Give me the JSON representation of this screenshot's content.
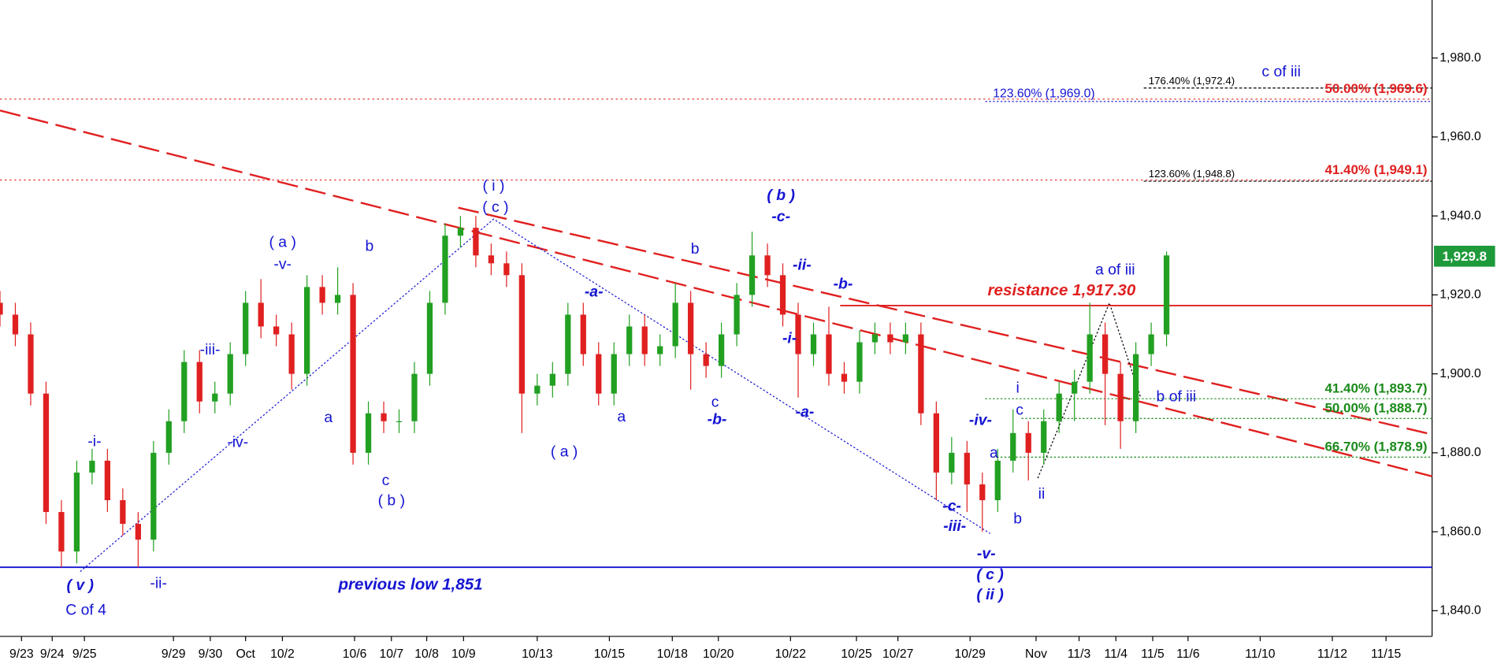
{
  "chart_data": {
    "type": "candlestick",
    "x": [
      0,
      1,
      2,
      3,
      4,
      5,
      6,
      7,
      8,
      9,
      10,
      11,
      12,
      13,
      14,
      15,
      16,
      17,
      18,
      19,
      20,
      21,
      22,
      23,
      24,
      25,
      26,
      27,
      28,
      29,
      30,
      31,
      32,
      33,
      34,
      35,
      36,
      37,
      38,
      39,
      40,
      41,
      42,
      43,
      44,
      45,
      46,
      47,
      48,
      49,
      50,
      51,
      52,
      53,
      54,
      55,
      56,
      57,
      58,
      59,
      60,
      61,
      62,
      63,
      64,
      65,
      66,
      67,
      68,
      69,
      70,
      71,
      72,
      73,
      74,
      75,
      76
    ],
    "open": [
      1918,
      1915,
      1910,
      1895,
      1865,
      1855,
      1875,
      1878,
      1868,
      1862,
      1858,
      1880,
      1888,
      1903,
      1893,
      1895,
      1905,
      1918,
      1912,
      1910,
      1900,
      1922,
      1918,
      1920,
      1880,
      1890,
      1888,
      1888,
      1900,
      1918,
      1935,
      1937,
      1930,
      1928,
      1925,
      1895,
      1897,
      1900,
      1915,
      1905,
      1895,
      1905,
      1912,
      1905,
      1907,
      1918,
      1905,
      1902,
      1910,
      1920,
      1930,
      1925,
      1915,
      1905,
      1910,
      1900,
      1898,
      1908,
      1910,
      1908,
      1910,
      1890,
      1875,
      1880,
      1872,
      1868,
      1878,
      1885,
      1880,
      1888,
      1895,
      1898,
      1910,
      1900,
      1888,
      1905,
      1910
    ],
    "high": [
      1921,
      1918,
      1913,
      1898,
      1868,
      1878,
      1881,
      1881,
      1871,
      1865,
      1883,
      1891,
      1906,
      1906,
      1898,
      1908,
      1921,
      1924,
      1915,
      1913,
      1925,
      1925,
      1927,
      1923,
      1893,
      1893,
      1891,
      1903,
      1921,
      1938,
      1940,
      1940,
      1933,
      1931,
      1928,
      1900,
      1903,
      1918,
      1918,
      1908,
      1908,
      1915,
      1915,
      1910,
      1923,
      1921,
      1908,
      1913,
      1923,
      1936,
      1933,
      1928,
      1918,
      1913,
      1917,
      1903,
      1911,
      1913,
      1913,
      1913,
      1913,
      1893,
      1884,
      1883,
      1875,
      1881,
      1891,
      1888,
      1891,
      1898,
      1901,
      1918,
      1913,
      1903,
      1908,
      1913,
      1931
    ],
    "low": [
      1912,
      1907,
      1892,
      1862,
      1851,
      1852,
      1872,
      1865,
      1859,
      1851,
      1855,
      1877,
      1885,
      1890,
      1890,
      1892,
      1902,
      1909,
      1907,
      1896,
      1897,
      1915,
      1915,
      1877,
      1877,
      1885,
      1885,
      1885,
      1897,
      1915,
      1932,
      1927,
      1925,
      1922,
      1885,
      1892,
      1894,
      1897,
      1902,
      1892,
      1892,
      1902,
      1902,
      1902,
      1904,
      1896,
      1899,
      1899,
      1907,
      1917,
      1922,
      1912,
      1894,
      1902,
      1897,
      1895,
      1895,
      1905,
      1905,
      1905,
      1887,
      1868,
      1872,
      1865,
      1860,
      1865,
      1875,
      1873,
      1877,
      1885,
      1888,
      1895,
      1887,
      1881,
      1885,
      1902,
      1907
    ],
    "close": [
      1915,
      1910,
      1895,
      1865,
      1855,
      1875,
      1878,
      1868,
      1862,
      1858,
      1880,
      1888,
      1903,
      1893,
      1895,
      1905,
      1918,
      1912,
      1910,
      1900,
      1922,
      1918,
      1920,
      1880,
      1890,
      1888,
      1888,
      1900,
      1918,
      1935,
      1937,
      1930,
      1928,
      1925,
      1895,
      1897,
      1900,
      1915,
      1905,
      1895,
      1905,
      1912,
      1905,
      1907,
      1918,
      1905,
      1902,
      1910,
      1920,
      1930,
      1925,
      1915,
      1905,
      1910,
      1900,
      1898,
      1908,
      1910,
      1908,
      1910,
      1890,
      1875,
      1880,
      1872,
      1868,
      1878,
      1885,
      1880,
      1888,
      1895,
      1898,
      1910,
      1900,
      1888,
      1905,
      1910,
      1930
    ],
    "up_color": "#22a022",
    "down_color": "#e02020",
    "xlim": [
      0,
      93.3
    ],
    "ylim": [
      1833.5,
      1994.7
    ],
    "xticks": [
      {
        "value": 1.4,
        "label": "9/23"
      },
      {
        "value": 3.4,
        "label": "9/24"
      },
      {
        "value": 5.5,
        "label": "9/25"
      },
      {
        "value": 11.3,
        "label": "9/29"
      },
      {
        "value": 13.7,
        "label": "9/30"
      },
      {
        "value": 16.0,
        "label": "Oct"
      },
      {
        "value": 18.4,
        "label": "10/2"
      },
      {
        "value": 23.1,
        "label": "10/6"
      },
      {
        "value": 25.5,
        "label": "10/7"
      },
      {
        "value": 27.8,
        "label": "10/8"
      },
      {
        "value": 30.2,
        "label": "10/9"
      },
      {
        "value": 35.0,
        "label": "10/13"
      },
      {
        "value": 39.7,
        "label": "10/15"
      },
      {
        "value": 43.8,
        "label": "10/18"
      },
      {
        "value": 46.8,
        "label": "10/20"
      },
      {
        "value": 51.5,
        "label": "10/22"
      },
      {
        "value": 55.8,
        "label": "10/25"
      },
      {
        "value": 58.5,
        "label": "10/27"
      },
      {
        "value": 63.2,
        "label": "10/29"
      },
      {
        "value": 67.5,
        "label": "Nov"
      },
      {
        "value": 70.3,
        "label": "11/3"
      },
      {
        "value": 72.7,
        "label": "11/4"
      },
      {
        "value": 75.1,
        "label": "11/5"
      },
      {
        "value": 77.4,
        "label": "11/6"
      },
      {
        "value": 82.1,
        "label": "11/10"
      },
      {
        "value": 86.8,
        "label": "11/12"
      },
      {
        "value": 90.3,
        "label": "11/15"
      }
    ],
    "yticks": [
      {
        "value": 1840,
        "label": "1,840.0"
      },
      {
        "value": 1860,
        "label": "1,860.0"
      },
      {
        "value": 1880,
        "label": "1,880.0"
      },
      {
        "value": 1900,
        "label": "1,900.0"
      },
      {
        "value": 1920,
        "label": "1,920.0"
      },
      {
        "value": 1940,
        "label": "1,940.0"
      },
      {
        "value": 1960,
        "label": "1,960.0"
      },
      {
        "value": 1980,
        "label": "1,980.0"
      }
    ],
    "last_price": {
      "value": 1929.8,
      "label": "1,929.8"
    },
    "last_price_color": "#1e9a3a",
    "levels": [
      {
        "label": "176.40% (1,972.4)",
        "value": 1972.4,
        "color": "#000000"
      },
      {
        "label": "50.00% (1,969.6)",
        "value": 1969.6,
        "color": "#e02020"
      },
      {
        "label": "123.60% (1,969.0)",
        "value": 1969.0,
        "color": "#1414d2"
      },
      {
        "label": "123.60% (1,948.8)",
        "value": 1948.8,
        "color": "#000000"
      },
      {
        "label": "41.40% (1,949.1)",
        "value": 1949.1,
        "color": "#e02020"
      },
      {
        "label": "resistance 1,917.30",
        "value": 1917.3,
        "color": "#e02020"
      },
      {
        "label": "41.40% (1,893.7)",
        "value": 1893.7,
        "color": "#1a8a1a"
      },
      {
        "label": "50.00% (1,888.7)",
        "value": 1888.7,
        "color": "#1a8a1a"
      },
      {
        "label": "66.70% (1,878.9)",
        "value": 1878.9,
        "color": "#1a8a1a"
      },
      {
        "label": "previous low 1,851",
        "value": 1851,
        "color": "#1414d2"
      }
    ],
    "annotations": [
      "( v )",
      "C of 4",
      "-i-",
      "-ii-",
      "-iii-",
      "-iv-",
      "( a )",
      "-v-",
      "b",
      "a",
      "c",
      "( b )",
      "( i )",
      "( c )",
      "-a-",
      "( a )",
      "a",
      "b",
      "c",
      "-b-",
      "( b )",
      "-c-",
      "-ii-",
      "-i-",
      "-b-",
      "-a-",
      "-c-",
      "-iii-",
      "-iv-",
      "a",
      "i",
      "c",
      "b",
      "ii",
      "-v-",
      "( c )",
      "( ii )",
      "a of iii",
      "b of iii",
      "c of iii"
    ]
  }
}
